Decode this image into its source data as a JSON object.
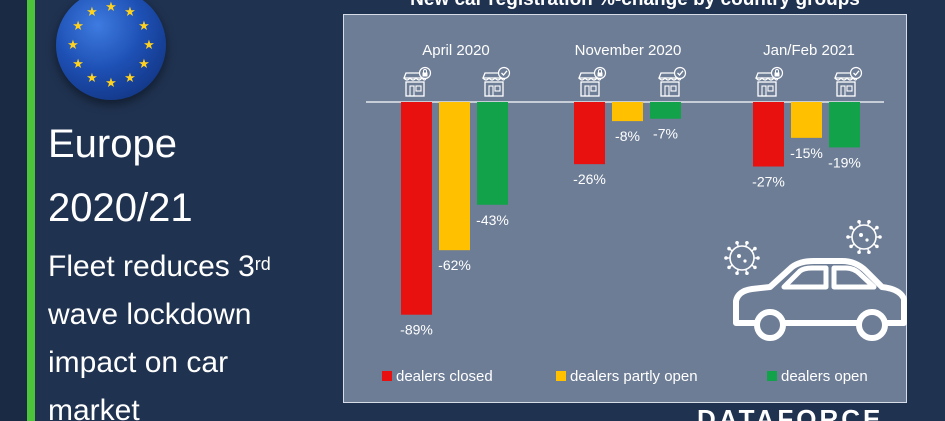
{
  "headline": {
    "line1": "Europe",
    "line2": "2020/21",
    "sub_pre": "Fleet reduces 3",
    "sub_sup": "rd",
    "sub2": "wave lockdown",
    "sub3": "impact on car",
    "sub4": "market"
  },
  "brand": "DATAFORCE",
  "colors": {
    "background": "#1f3250",
    "accent_stripe": "#4cc53a",
    "panel": "#6d7d96",
    "dealers_closed": "#e8110f",
    "dealers_partly_open": "#ffc000",
    "dealers_open": "#12a24a"
  },
  "icons": [
    "eu-flag-icon",
    "store-locked-icon",
    "store-open-icon",
    "car-icon",
    "virus-icon"
  ],
  "chart_data": {
    "type": "bar",
    "title": "New car registration %-change by country groups",
    "categories": [
      "April 2020",
      "November 2020",
      "Jan/Feb 2021"
    ],
    "series": [
      {
        "name": "dealers closed",
        "values": [
          -89,
          -26,
          -27
        ],
        "labels": [
          "-89%",
          "-26%",
          "-27%"
        ]
      },
      {
        "name": "dealers partly open",
        "values": [
          -62,
          -8,
          -15
        ],
        "labels": [
          "-62%",
          "-8%",
          "-15%"
        ]
      },
      {
        "name": "dealers open",
        "values": [
          -43,
          -7,
          -19
        ],
        "labels": [
          "-43%",
          "-7%",
          "-19%"
        ]
      }
    ],
    "ylim": [
      -100,
      0
    ],
    "legend_position": "bottom",
    "grid": false
  }
}
